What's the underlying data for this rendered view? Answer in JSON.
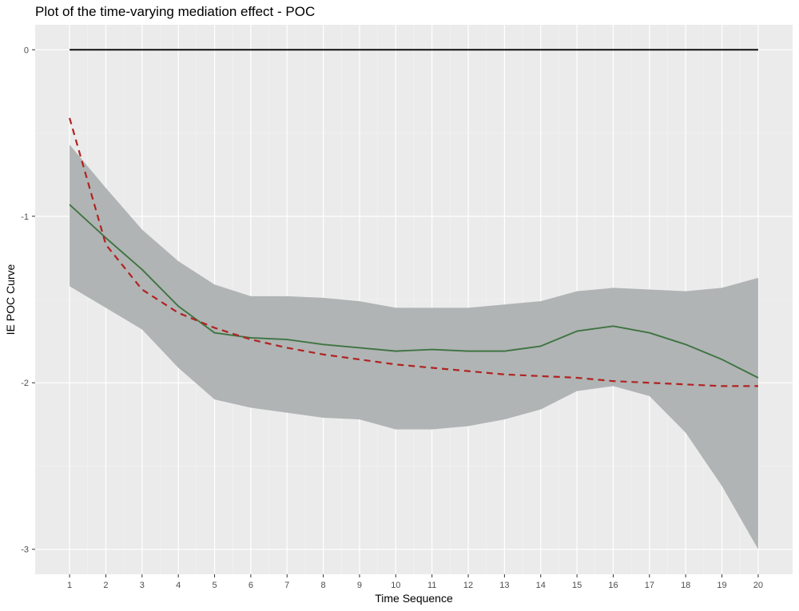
{
  "chart_data": {
    "type": "line",
    "title": "Plot of the time-varying mediation effect - POC",
    "xlabel": "Time Sequence",
    "ylabel": "IE POC Curve",
    "xlim": [
      0.05,
      20.95
    ],
    "ylim": [
      -3.15,
      0.15
    ],
    "x_ticks": [
      "1",
      "2",
      "3",
      "4",
      "5",
      "6",
      "7",
      "8",
      "9",
      "10",
      "11",
      "12",
      "13",
      "14",
      "15",
      "16",
      "17",
      "18",
      "19",
      "20"
    ],
    "y_ticks": [
      "-3",
      "-2",
      "-1",
      "0"
    ],
    "grid": true,
    "x": [
      1,
      2,
      3,
      4,
      5,
      6,
      7,
      8,
      9,
      10,
      11,
      12,
      13,
      14,
      15,
      16,
      17,
      18,
      19,
      20
    ],
    "series": [
      {
        "type": "ribbon",
        "color": "#b0b4b4",
        "upper": [
          -0.57,
          -0.83,
          -1.08,
          -1.27,
          -1.41,
          -1.48,
          -1.48,
          -1.49,
          -1.51,
          -1.55,
          -1.55,
          -1.55,
          -1.53,
          -1.51,
          -1.45,
          -1.43,
          -1.44,
          -1.45,
          -1.43,
          -1.37
        ],
        "lower": [
          -1.42,
          -1.55,
          -1.68,
          -1.91,
          -2.1,
          -2.15,
          -2.18,
          -2.21,
          -2.22,
          -2.28,
          -2.28,
          -2.26,
          -2.22,
          -2.16,
          -2.05,
          -2.02,
          -2.08,
          -2.3,
          -2.62,
          -3.0
        ]
      },
      {
        "type": "line",
        "color": "#3f7442",
        "style": "solid",
        "values": [
          -0.93,
          -1.13,
          -1.32,
          -1.54,
          -1.7,
          -1.73,
          -1.74,
          -1.77,
          -1.79,
          -1.81,
          -1.8,
          -1.81,
          -1.81,
          -1.78,
          -1.69,
          -1.66,
          -1.7,
          -1.77,
          -1.86,
          -1.97
        ]
      },
      {
        "type": "line",
        "color": "#b22222",
        "style": "dashed",
        "values": [
          -0.41,
          -1.17,
          -1.44,
          -1.58,
          -1.67,
          -1.74,
          -1.79,
          -1.83,
          -1.86,
          -1.89,
          -1.91,
          -1.93,
          -1.95,
          -1.96,
          -1.97,
          -1.99,
          -2.0,
          -2.01,
          -2.02,
          -2.02
        ]
      },
      {
        "type": "line",
        "color": "#000000",
        "style": "solid",
        "values": [
          0,
          0,
          0,
          0,
          0,
          0,
          0,
          0,
          0,
          0,
          0,
          0,
          0,
          0,
          0,
          0,
          0,
          0,
          0,
          0
        ]
      }
    ]
  }
}
